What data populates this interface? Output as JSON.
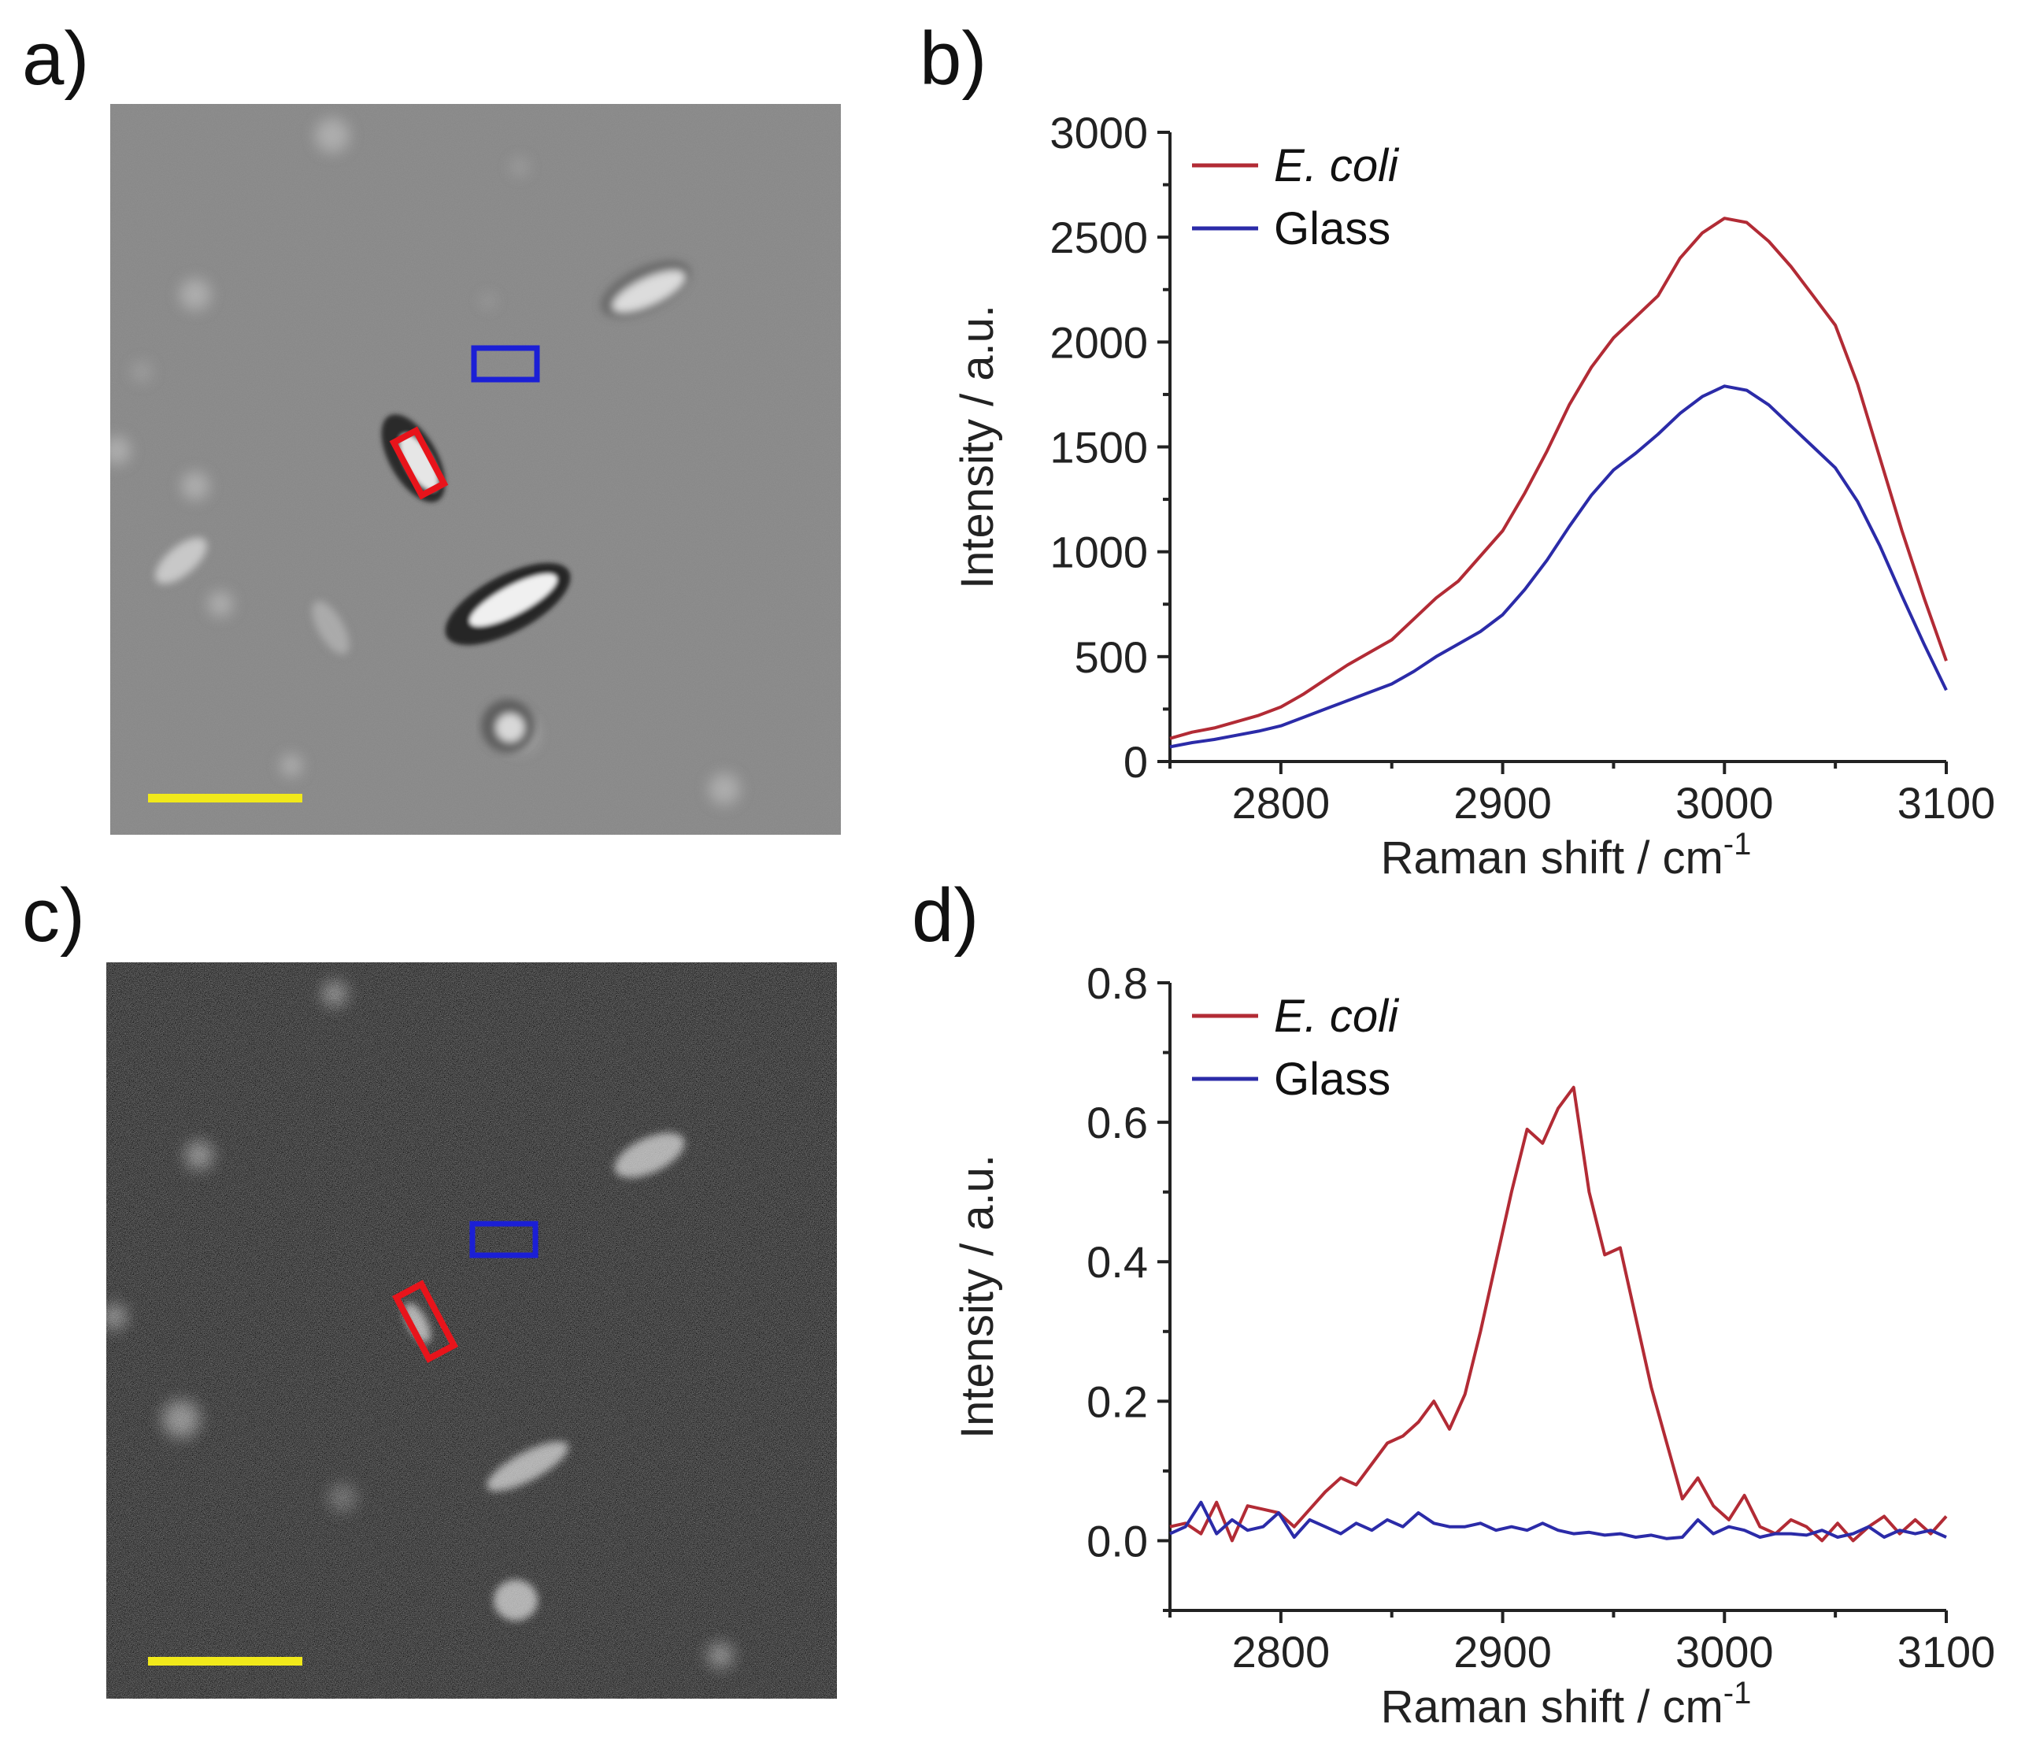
{
  "panels": {
    "a": "a)",
    "b": "b)",
    "c": "c)",
    "d": "d)"
  },
  "micrographs": {
    "a_description": "brightfield",
    "c_description": "SRS image",
    "roi_bacterium_color": "#e8141b",
    "roi_glass_color": "#1b1fd6",
    "scale_bar_color": "#f1e91a"
  },
  "colors": {
    "ecoli": "#b22b35",
    "glass": "#2b2ba8"
  },
  "chart_data": [
    {
      "id": "b",
      "type": "line",
      "xlabel": "Raman shift / cm",
      "xlabel_sup": "-1",
      "ylabel": "Intensity / a.u.",
      "xlim": [
        2750,
        3100
      ],
      "ylim": [
        0,
        3000
      ],
      "xticks": [
        2800,
        2900,
        3000,
        3100
      ],
      "yticks": [
        0,
        500,
        1000,
        1500,
        2000,
        2500,
        3000
      ],
      "ytick_labels": [
        "0",
        "500",
        "1000",
        "1500",
        "2000",
        "2500",
        "3000"
      ],
      "series": [
        {
          "name": "E. coli",
          "color": "#b22b35",
          "x": [
            2750,
            2760,
            2770,
            2780,
            2790,
            2800,
            2810,
            2820,
            2830,
            2840,
            2850,
            2860,
            2870,
            2880,
            2890,
            2900,
            2910,
            2920,
            2930,
            2940,
            2950,
            2960,
            2970,
            2980,
            2990,
            3000,
            3010,
            3020,
            3030,
            3040,
            3050,
            3060,
            3070,
            3080,
            3090,
            3100
          ],
          "y": [
            110,
            140,
            160,
            190,
            220,
            260,
            320,
            390,
            460,
            520,
            580,
            680,
            780,
            860,
            980,
            1100,
            1280,
            1480,
            1700,
            1880,
            2020,
            2120,
            2220,
            2400,
            2520,
            2590,
            2570,
            2480,
            2360,
            2220,
            2080,
            1800,
            1450,
            1100,
            780,
            480
          ]
        },
        {
          "name": "Glass",
          "color": "#2b2ba8",
          "x": [
            2750,
            2760,
            2770,
            2780,
            2790,
            2800,
            2810,
            2820,
            2830,
            2840,
            2850,
            2860,
            2870,
            2880,
            2890,
            2900,
            2910,
            2920,
            2930,
            2940,
            2950,
            2960,
            2970,
            2980,
            2990,
            3000,
            3010,
            3020,
            3030,
            3040,
            3050,
            3060,
            3070,
            3080,
            3090,
            3100
          ],
          "y": [
            70,
            90,
            105,
            125,
            145,
            170,
            210,
            250,
            290,
            330,
            370,
            430,
            500,
            560,
            620,
            700,
            820,
            960,
            1120,
            1270,
            1390,
            1470,
            1560,
            1660,
            1740,
            1790,
            1770,
            1700,
            1600,
            1500,
            1400,
            1240,
            1030,
            790,
            560,
            340
          ]
        }
      ]
    },
    {
      "id": "d",
      "type": "line",
      "xlabel": "Raman shift / cm",
      "xlabel_sup": "-1",
      "ylabel": "Intensity / a.u.",
      "xlim": [
        2750,
        3100
      ],
      "ylim": [
        -0.1,
        0.8
      ],
      "xticks": [
        2800,
        2900,
        3000,
        3100
      ],
      "yticks": [
        0.0,
        0.2,
        0.4,
        0.6,
        0.8
      ],
      "ytick_labels": [
        "0.0",
        "0.2",
        "0.4",
        "0.6",
        "0.8"
      ],
      "series": [
        {
          "name": "E. coli",
          "color": "#b22b35",
          "x": [
            2750,
            2757,
            2764,
            2771,
            2778,
            2785,
            2792,
            2799,
            2806,
            2813,
            2820,
            2827,
            2834,
            2841,
            2848,
            2855,
            2862,
            2869,
            2876,
            2883,
            2890,
            2897,
            2904,
            2911,
            2918,
            2925,
            2932,
            2939,
            2946,
            2953,
            2960,
            2967,
            2974,
            2981,
            2988,
            2995,
            3002,
            3009,
            3016,
            3023,
            3030,
            3037,
            3044,
            3051,
            3058,
            3065,
            3072,
            3079,
            3086,
            3093,
            3100
          ],
          "y": [
            0.02,
            0.025,
            0.01,
            0.055,
            0.0,
            0.05,
            0.045,
            0.04,
            0.02,
            0.045,
            0.07,
            0.09,
            0.08,
            0.11,
            0.14,
            0.15,
            0.17,
            0.2,
            0.16,
            0.21,
            0.3,
            0.4,
            0.5,
            0.59,
            0.57,
            0.62,
            0.65,
            0.5,
            0.41,
            0.42,
            0.32,
            0.22,
            0.14,
            0.06,
            0.09,
            0.05,
            0.03,
            0.065,
            0.02,
            0.01,
            0.03,
            0.02,
            0.0,
            0.025,
            0.0,
            0.02,
            0.035,
            0.01,
            0.03,
            0.01,
            0.035
          ]
        },
        {
          "name": "Glass",
          "color": "#2b2ba8",
          "x": [
            2750,
            2757,
            2764,
            2771,
            2778,
            2785,
            2792,
            2799,
            2806,
            2813,
            2820,
            2827,
            2834,
            2841,
            2848,
            2855,
            2862,
            2869,
            2876,
            2883,
            2890,
            2897,
            2904,
            2911,
            2918,
            2925,
            2932,
            2939,
            2946,
            2953,
            2960,
            2967,
            2974,
            2981,
            2988,
            2995,
            3002,
            3009,
            3016,
            3023,
            3030,
            3037,
            3044,
            3051,
            3058,
            3065,
            3072,
            3079,
            3086,
            3093,
            3100
          ],
          "y": [
            0.01,
            0.02,
            0.055,
            0.01,
            0.03,
            0.015,
            0.02,
            0.04,
            0.005,
            0.03,
            0.02,
            0.01,
            0.025,
            0.015,
            0.03,
            0.02,
            0.04,
            0.025,
            0.02,
            0.02,
            0.025,
            0.015,
            0.02,
            0.015,
            0.025,
            0.015,
            0.01,
            0.012,
            0.008,
            0.01,
            0.005,
            0.008,
            0.003,
            0.005,
            0.03,
            0.01,
            0.02,
            0.015,
            0.005,
            0.01,
            0.01,
            0.008,
            0.015,
            0.005,
            0.01,
            0.02,
            0.005,
            0.015,
            0.01,
            0.015,
            0.005
          ]
        }
      ]
    }
  ]
}
